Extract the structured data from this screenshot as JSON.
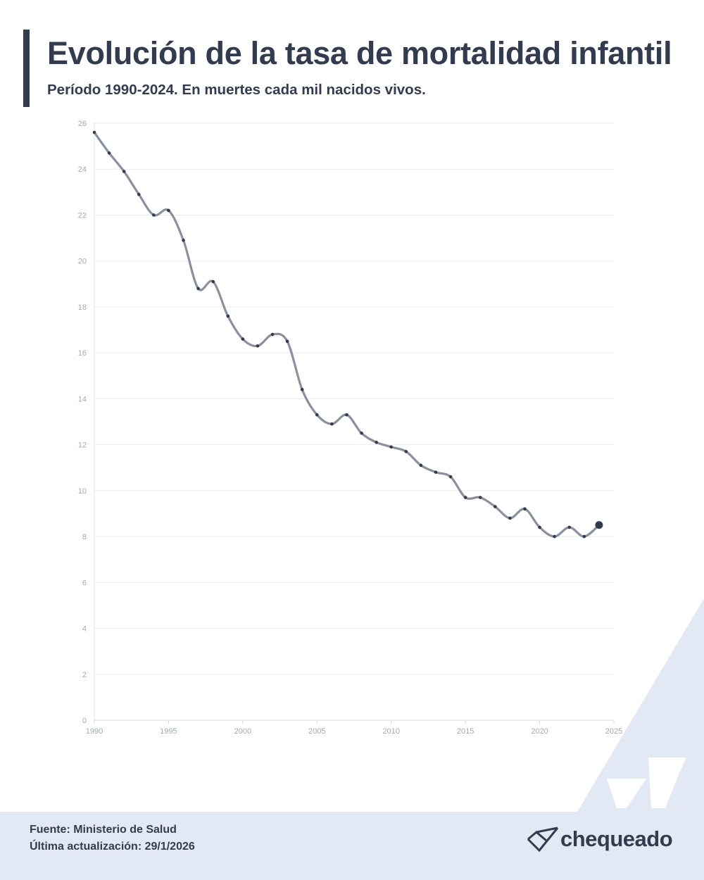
{
  "title": "Evolución de la tasa de mortalidad infantil",
  "subtitle": "Período 1990-2024. En muertes cada mil nacidos vivos.",
  "footer": {
    "source": "Fuente: Ministerio de Salud",
    "updated": "Última actualización: 29/1/2026",
    "logo_text": "chequeado"
  },
  "colors": {
    "primary": "#333b4f",
    "line": "#8a909e",
    "grid": "#ebebeb",
    "footer_bg": "#e3e9f4",
    "background_shape": "#e3e9f4"
  },
  "chart_data": {
    "type": "line",
    "x": [
      1990,
      1991,
      1992,
      1993,
      1994,
      1995,
      1996,
      1997,
      1998,
      1999,
      2000,
      2001,
      2002,
      2003,
      2004,
      2005,
      2006,
      2007,
      2008,
      2009,
      2010,
      2011,
      2012,
      2013,
      2014,
      2015,
      2016,
      2017,
      2018,
      2019,
      2020,
      2021,
      2022,
      2023,
      2024
    ],
    "y": [
      25.6,
      24.7,
      23.9,
      22.9,
      22.0,
      22.2,
      20.9,
      18.8,
      19.1,
      17.6,
      16.6,
      16.3,
      16.8,
      16.5,
      14.4,
      13.3,
      12.9,
      13.3,
      12.5,
      12.1,
      11.9,
      11.7,
      11.1,
      10.8,
      10.6,
      9.7,
      9.7,
      9.3,
      8.8,
      9.2,
      8.4,
      8.0,
      8.4,
      8.0,
      8.5
    ],
    "xlim": [
      1990,
      2025
    ],
    "ylim": [
      0,
      26
    ],
    "xticks": [
      1990,
      1995,
      2000,
      2005,
      2010,
      2015,
      2020,
      2025
    ],
    "yticks": [
      0,
      2,
      4,
      6,
      8,
      10,
      12,
      14,
      16,
      18,
      20,
      22,
      24,
      26
    ],
    "grid": true,
    "last_point_highlighted": true
  }
}
